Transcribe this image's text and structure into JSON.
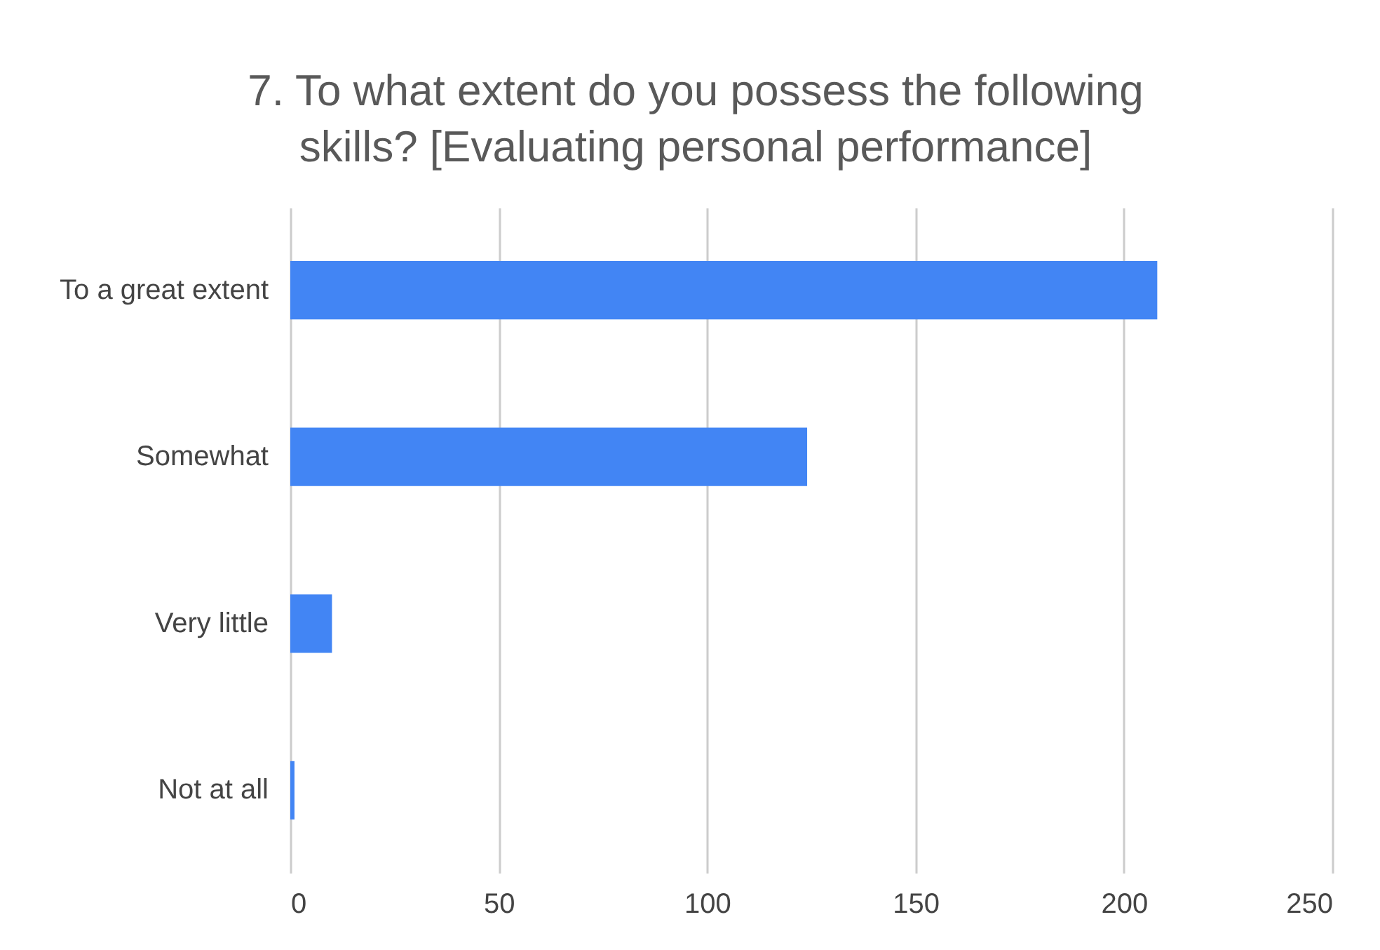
{
  "chart_data": {
    "type": "bar",
    "orientation": "horizontal",
    "title": "7. To what extent do you possess the following skills?  [Evaluating personal performance]",
    "categories": [
      "To a great extent",
      "Somewhat",
      "Very little",
      "Not at all"
    ],
    "values": [
      208,
      124,
      10,
      1
    ],
    "color": "#4285f4",
    "xlim": [
      0,
      250
    ],
    "xticks": [
      0,
      50,
      100,
      150,
      200,
      250
    ],
    "grid": "x"
  }
}
